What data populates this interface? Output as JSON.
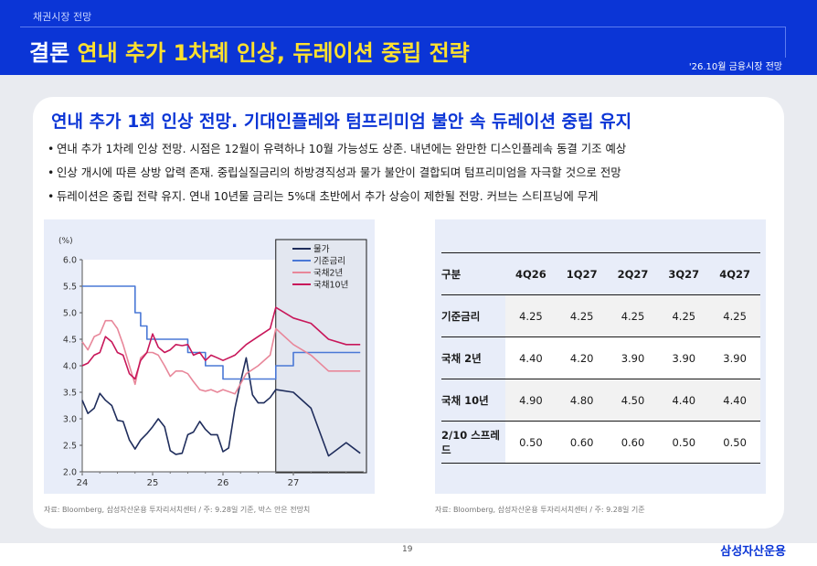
{
  "header": {
    "section": "채권시장 전망",
    "title_lead": "결론",
    "title_rest": "연내 추가 1차례 인상, 듀레이션 중립 전략",
    "date_tag": "'26.10월 금융시장 전망"
  },
  "headline": "연내 추가 1회 인상 전망. 기대인플레와 텀프리미엄 불안 속 듀레이션 중립 유지",
  "bullets": [
    "연내 추가 1차례 인상 전망. 시점은 12월이 유력하나 10월 가능성도 상존. 내년에는 완만한 디스인플레속 동결 기조 예상",
    "인상 개시에 따른 상방 압력 존재. 중립실질금리의 하방경직성과 물가 불안이 결합되며 텀프리미엄을 자극할 것으로 전망",
    "듀레이션은 중립 전략 유지. 연내 10년물 금리는 5%대 초반에서 추가 상승이 제한될 전망. 커브는 스티프닝에 무게"
  ],
  "colors": {
    "brand_blue": "#0b35d6",
    "title_yellow": "#ffe12e",
    "panel_gray": "#e9ebf0",
    "box_blue": "#e8edf9"
  },
  "chart_data": {
    "type": "line",
    "ylabel": "(%)",
    "ylim": [
      2.0,
      6.0
    ],
    "yticks": [
      "6.0",
      "5.5",
      "5.0",
      "4.5",
      "4.0",
      "3.5",
      "3.0",
      "2.5",
      "2.0"
    ],
    "xticks": [
      "24",
      "25",
      "26",
      "27"
    ],
    "xlim": [
      2024.0,
      2028.0
    ],
    "forecast_box_start": 2026.75,
    "series": [
      {
        "name": "물가",
        "color": "#1f2d5c",
        "x": [
          2024.0,
          2024.08,
          2024.17,
          2024.25,
          2024.33,
          2024.42,
          2024.5,
          2024.58,
          2024.67,
          2024.75,
          2024.83,
          2024.92,
          2025.0,
          2025.08,
          2025.17,
          2025.25,
          2025.33,
          2025.42,
          2025.5,
          2025.58,
          2025.67,
          2025.75,
          2025.83,
          2025.92,
          2026.0,
          2026.08,
          2026.17,
          2026.25,
          2026.33,
          2026.42,
          2026.5,
          2026.58,
          2026.67,
          2026.75,
          2027.0,
          2027.25,
          2027.5,
          2027.75,
          2027.95
        ],
        "y": [
          3.35,
          3.1,
          3.2,
          3.48,
          3.35,
          3.25,
          2.97,
          2.95,
          2.6,
          2.43,
          2.6,
          2.72,
          2.85,
          3.0,
          2.85,
          2.4,
          2.33,
          2.35,
          2.7,
          2.75,
          2.95,
          2.8,
          2.7,
          2.7,
          2.38,
          2.45,
          3.2,
          3.7,
          4.15,
          3.45,
          3.3,
          3.3,
          3.4,
          3.55,
          3.5,
          3.2,
          2.3,
          2.55,
          2.35
        ]
      },
      {
        "name": "기준금리",
        "color": "#4a78d6",
        "x": [
          2024.0,
          2024.75,
          2024.75,
          2024.83,
          2024.83,
          2024.92,
          2024.92,
          2025.5,
          2025.5,
          2025.75,
          2025.75,
          2026.0,
          2026.0,
          2026.75,
          2026.75,
          2027.0,
          2027.0,
          2027.95
        ],
        "y": [
          5.5,
          5.5,
          5.0,
          5.0,
          4.75,
          4.75,
          4.5,
          4.5,
          4.25,
          4.25,
          4.0,
          4.0,
          3.75,
          3.75,
          4.0,
          4.0,
          4.25,
          4.25
        ]
      },
      {
        "name": "국채2년",
        "color": "#e8879a",
        "x": [
          2024.0,
          2024.08,
          2024.17,
          2024.25,
          2024.33,
          2024.42,
          2024.5,
          2024.58,
          2024.67,
          2024.75,
          2024.83,
          2024.92,
          2025.0,
          2025.08,
          2025.17,
          2025.25,
          2025.33,
          2025.42,
          2025.5,
          2025.58,
          2025.67,
          2025.75,
          2025.83,
          2025.92,
          2026.0,
          2026.17,
          2026.33,
          2026.5,
          2026.67,
          2026.75,
          2027.0,
          2027.25,
          2027.5,
          2027.75,
          2027.95
        ],
        "y": [
          4.45,
          4.3,
          4.55,
          4.6,
          4.85,
          4.85,
          4.7,
          4.4,
          4.0,
          3.65,
          4.15,
          4.25,
          4.25,
          4.2,
          4.0,
          3.8,
          3.9,
          3.9,
          3.85,
          3.7,
          3.55,
          3.52,
          3.55,
          3.5,
          3.55,
          3.47,
          3.85,
          4.0,
          4.2,
          4.7,
          4.4,
          4.2,
          3.9,
          3.9,
          3.9
        ]
      },
      {
        "name": "국채10년",
        "color": "#c8175a",
        "x": [
          2024.0,
          2024.08,
          2024.17,
          2024.25,
          2024.33,
          2024.42,
          2024.5,
          2024.58,
          2024.67,
          2024.75,
          2024.83,
          2024.92,
          2025.0,
          2025.08,
          2025.17,
          2025.25,
          2025.33,
          2025.42,
          2025.5,
          2025.58,
          2025.67,
          2025.75,
          2025.83,
          2025.92,
          2026.0,
          2026.17,
          2026.33,
          2026.5,
          2026.67,
          2026.75,
          2027.0,
          2027.25,
          2027.5,
          2027.75,
          2027.95
        ],
        "y": [
          4.0,
          4.05,
          4.2,
          4.25,
          4.55,
          4.45,
          4.25,
          4.2,
          3.85,
          3.75,
          4.1,
          4.25,
          4.6,
          4.35,
          4.25,
          4.3,
          4.4,
          4.38,
          4.4,
          4.2,
          4.25,
          4.1,
          4.2,
          4.15,
          4.1,
          4.2,
          4.4,
          4.55,
          4.7,
          5.1,
          4.9,
          4.8,
          4.5,
          4.4,
          4.4
        ]
      }
    ]
  },
  "table": {
    "headers": [
      "구분",
      "4Q26",
      "1Q27",
      "2Q27",
      "3Q27",
      "4Q27"
    ],
    "rows": [
      {
        "label": "기준금리",
        "values": [
          "4.25",
          "4.25",
          "4.25",
          "4.25",
          "4.25"
        ]
      },
      {
        "label": "국채 2년",
        "values": [
          "4.40",
          "4.20",
          "3.90",
          "3.90",
          "3.90"
        ]
      },
      {
        "label": "국채 10년",
        "values": [
          "4.90",
          "4.80",
          "4.50",
          "4.40",
          "4.40"
        ]
      },
      {
        "label": "2/10 스프레드",
        "values": [
          "0.50",
          "0.60",
          "0.60",
          "0.50",
          "0.50"
        ]
      }
    ]
  },
  "sources": {
    "chart": "자료: Bloomberg, 삼성자산운용 투자리서치센터 / 주: 9.28일 기준, 박스 안은 전망치",
    "table": "자료: Bloomberg, 삼성자산운용 투자리서치센터 / 주: 9.28일 기준"
  },
  "footer": {
    "page": "19",
    "brand": "삼성자산운용"
  }
}
